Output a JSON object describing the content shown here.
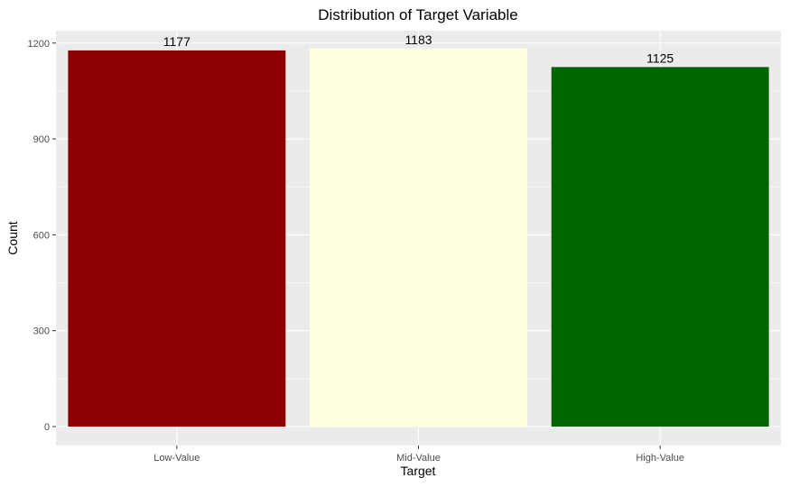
{
  "chart_data": {
    "type": "bar",
    "title": "Distribution of Target Variable",
    "xlabel": "Target",
    "ylabel": "Count",
    "categories": [
      "Low-Value",
      "Mid-Value",
      "High-Value"
    ],
    "values": [
      1177,
      1183,
      1125
    ],
    "data_labels": [
      "1177",
      "1183",
      "1125"
    ],
    "bar_colors": [
      "#8b0000",
      "#ffffe0",
      "#006400"
    ],
    "ylim": [
      0,
      1260
    ],
    "yticks": [
      0,
      300,
      600,
      900,
      1200
    ],
    "ytick_labels": [
      "0",
      "300",
      "600",
      "900",
      "1200"
    ],
    "grid": true,
    "legend": "none",
    "panel_background": "#ebebeb",
    "gridline_color": "#ffffff"
  }
}
